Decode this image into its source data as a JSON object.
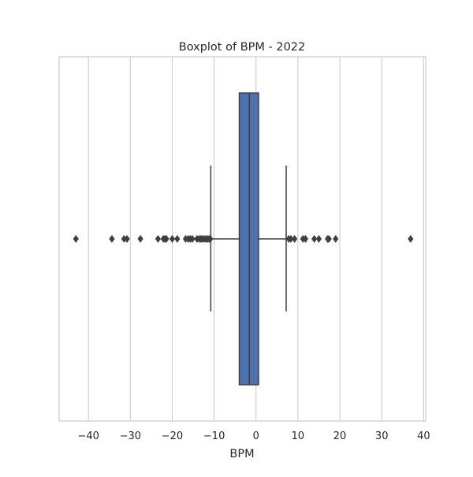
{
  "chart_data": {
    "type": "boxplot",
    "title": "Boxplot of BPM - 2022",
    "xlabel": "BPM",
    "ylabel": "",
    "xlim": [
      -47,
      40.5
    ],
    "xticks": [
      -40,
      -30,
      -20,
      -10,
      0,
      10,
      20,
      30,
      40
    ],
    "xtick_labels": [
      "−40",
      "−30",
      "−20",
      "−10",
      "0",
      "10",
      "20",
      "30",
      "40"
    ],
    "grid": "vertical",
    "orientation": "horizontal",
    "box": {
      "q1": -4.0,
      "median": -1.6,
      "q3": 0.6,
      "whisker_low": -10.8,
      "whisker_high": 7.2
    },
    "outliers": [
      -43.0,
      -34.4,
      -31.5,
      -30.8,
      -27.6,
      -23.4,
      -22.1,
      -21.7,
      -21.4,
      -20.0,
      -18.8,
      -16.8,
      -16.2,
      -15.7,
      -15.2,
      -14.1,
      -13.6,
      -13.2,
      -12.9,
      -12.4,
      -12.0,
      -11.6,
      -11.2,
      -10.9,
      7.8,
      8.3,
      9.2,
      11.2,
      11.8,
      13.9,
      15.0,
      17.1,
      17.4,
      19.0,
      36.9
    ],
    "colors": {
      "box_fill": "#4c72b0",
      "line": "#3f3f3f",
      "grid": "#cccccc",
      "frame": "#cccccc"
    }
  }
}
